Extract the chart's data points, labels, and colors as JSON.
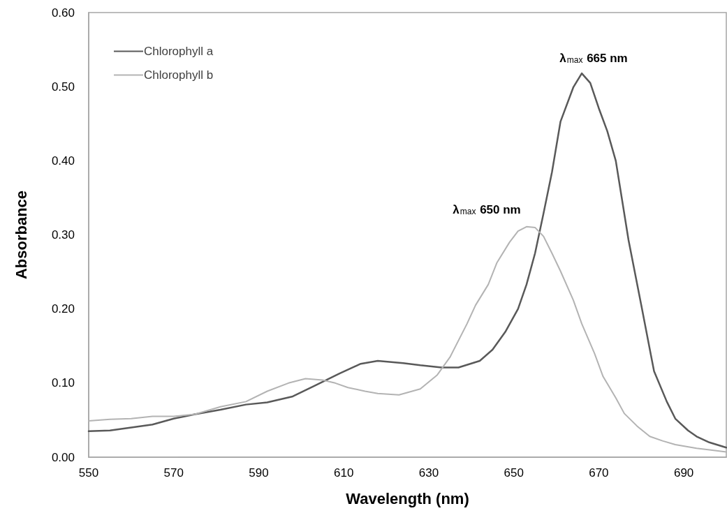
{
  "chart_data": {
    "type": "line",
    "xlabel": "Wavelength (nm)",
    "ylabel": "Absorbance",
    "xlim": [
      550,
      700
    ],
    "xticks": [
      550,
      570,
      590,
      610,
      630,
      650,
      670,
      690
    ],
    "ylim": [
      0,
      0.6
    ],
    "yticks": [
      {
        "value": 0,
        "label": "0.00"
      },
      {
        "value": 0.1,
        "label": "0.10"
      },
      {
        "value": 0.2,
        "label": "0.20"
      },
      {
        "value": 0.3,
        "label": "0.30"
      },
      {
        "value": 0.4,
        "label": "0.40"
      },
      {
        "value": 0.5,
        "label": "0.50"
      },
      {
        "value": 0.6,
        "label": "0.60"
      }
    ],
    "grid": false,
    "legend": "top left",
    "marker": "none",
    "line_style": "solid",
    "series": [
      {
        "name": "Chlorophyll a",
        "color": "#595959",
        "x": [
          550,
          555,
          560,
          565,
          570,
          575,
          581,
          587,
          592,
          598,
          603,
          609,
          614,
          618,
          624,
          628,
          633,
          637,
          642,
          645,
          648,
          651,
          653,
          655,
          657,
          659,
          661,
          664,
          666,
          668,
          670,
          672,
          674,
          677,
          680,
          683,
          686,
          688,
          691,
          693,
          696,
          700
        ],
        "values": [
          0.035,
          0.036,
          0.04,
          0.044,
          0.052,
          0.058,
          0.064,
          0.071,
          0.074,
          0.082,
          0.096,
          0.113,
          0.126,
          0.13,
          0.127,
          0.124,
          0.121,
          0.121,
          0.13,
          0.145,
          0.169,
          0.2,
          0.233,
          0.275,
          0.329,
          0.385,
          0.453,
          0.499,
          0.518,
          0.505,
          0.471,
          0.44,
          0.4,
          0.293,
          0.205,
          0.116,
          0.075,
          0.052,
          0.036,
          0.028,
          0.02,
          0.013
        ]
      },
      {
        "name": "Chlorophyll b",
        "color": "#b3b3b3",
        "x": [
          550,
          555,
          560,
          565,
          570,
          575,
          581,
          587,
          592,
          597,
          601,
          605,
          608,
          611,
          615,
          618,
          623,
          628,
          632,
          635,
          639,
          641,
          644,
          646,
          649,
          651,
          653,
          655,
          657,
          659,
          661,
          664,
          666,
          669,
          671,
          674,
          676,
          679,
          682,
          685,
          688,
          693,
          700
        ],
        "values": [
          0.049,
          0.051,
          0.052,
          0.055,
          0.055,
          0.058,
          0.068,
          0.075,
          0.089,
          0.1,
          0.106,
          0.104,
          0.1,
          0.094,
          0.089,
          0.086,
          0.084,
          0.092,
          0.111,
          0.135,
          0.18,
          0.205,
          0.233,
          0.262,
          0.29,
          0.305,
          0.311,
          0.31,
          0.298,
          0.275,
          0.251,
          0.212,
          0.18,
          0.14,
          0.109,
          0.08,
          0.059,
          0.042,
          0.028,
          0.022,
          0.017,
          0.012,
          0.007
        ]
      }
    ],
    "annotations": [
      "λ$_{max}$ 665 nm",
      "λ$_{max}$ 650 nm"
    ]
  }
}
